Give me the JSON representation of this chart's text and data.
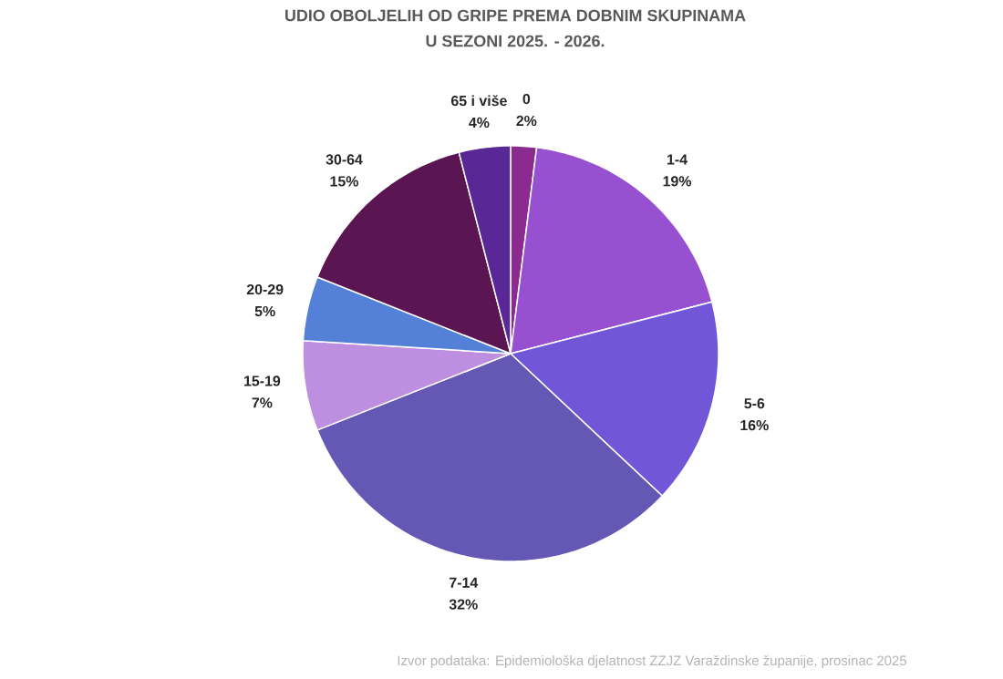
{
  "chart_data": {
    "type": "pie",
    "title": "UDIO OBOLJELIH OD GRIPE PREMA DOBNIM SKUPINAMA",
    "subtitle": "U SEZONI 2025. - 2026.",
    "categories": [
      "0",
      "1-4",
      "5-6",
      "7-14",
      "15-19",
      "20-29",
      "30-64",
      "65 i više"
    ],
    "values": [
      2,
      19,
      16,
      32,
      7,
      5,
      15,
      4
    ],
    "value_labels": [
      "2%",
      "19%",
      "16%",
      "32%",
      "7%",
      "5%",
      "15%",
      "4%"
    ],
    "colors": [
      "#8b2a8f",
      "#9650d0",
      "#7256d8",
      "#6458b4",
      "#be8ee0",
      "#5480d8",
      "#5a1552",
      "#5a2896"
    ],
    "annotations": [
      "Izvor podataka: Epidemiološka djelatnost ZZJZ Varaždinske županije, prosinac 2025"
    ]
  }
}
